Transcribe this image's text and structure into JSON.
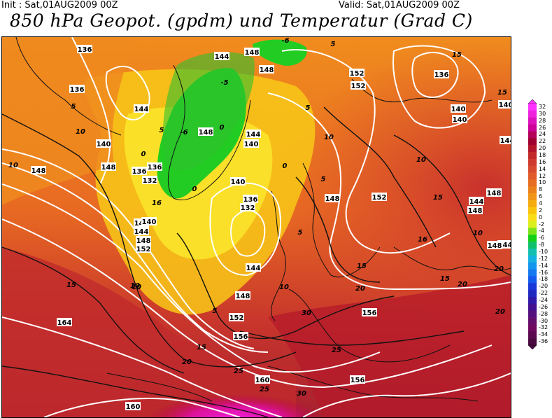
{
  "header": {
    "init": "Init : Sat,01AUG2009 00Z",
    "valid": "Valid: Sat,01AUG2009 00Z",
    "title": "850 hPa Geopot. (gpdm) und Temperatur (Grad C)"
  },
  "legend": {
    "labels": [
      "32",
      "30",
      "28",
      "26",
      "24",
      "22",
      "20",
      "18",
      "16",
      "14",
      "12",
      "10",
      "8",
      "6",
      "4",
      "2",
      "0",
      "-2",
      "-4",
      "-6",
      "-8",
      "-10",
      "-12",
      "-14",
      "-16",
      "-18",
      "-20",
      "-22",
      "-24",
      "-26",
      "-28",
      "-30",
      "-32",
      "-34",
      "-36"
    ],
    "colors": [
      "#ff33ff",
      "#ee22dd",
      "#dd11bb",
      "#cc0099",
      "#b30059",
      "#a00030",
      "#b4142a",
      "#c22828",
      "#cf3a2e",
      "#d84a2e",
      "#e05a2a",
      "#e66d22",
      "#eb801a",
      "#f09515",
      "#f4ac10",
      "#f8c40c",
      "#fbdd18",
      "#d9ef1e",
      "#7be51a",
      "#14d016",
      "#10c06a",
      "#13c0b0",
      "#15b2e0",
      "#1596ee",
      "#1478ee",
      "#155aee",
      "#1838d8",
      "#2028c0",
      "#3018a8",
      "#421090",
      "#54107c",
      "#640e6c",
      "#700a5e",
      "#5c0a50",
      "#4a0840"
    ]
  },
  "map": {
    "contour_labels": [
      {
        "t": "136"
      },
      {
        "t": "136"
      },
      {
        "t": "144"
      },
      {
        "t": "148"
      },
      {
        "t": "148"
      },
      {
        "t": "152"
      },
      {
        "t": "152"
      },
      {
        "t": "136"
      },
      {
        "t": "140"
      },
      {
        "t": "144"
      },
      {
        "t": "148"
      },
      {
        "t": "140"
      },
      {
        "t": "148"
      },
      {
        "t": "136"
      },
      {
        "t": "132"
      },
      {
        "t": "140"
      },
      {
        "t": "144"
      },
      {
        "t": "148"
      },
      {
        "t": "152"
      },
      {
        "t": "136"
      },
      {
        "t": "132"
      },
      {
        "t": "140"
      },
      {
        "t": "144"
      },
      {
        "t": "148"
      },
      {
        "t": "152"
      },
      {
        "t": "156"
      },
      {
        "t": "164"
      },
      {
        "t": "160"
      },
      {
        "t": "160"
      },
      {
        "t": "156"
      },
      {
        "t": "156"
      },
      {
        "t": "152"
      },
      {
        "t": "148"
      },
      {
        "t": "148"
      },
      {
        "t": "144"
      },
      {
        "t": "140"
      },
      {
        "t": "140"
      },
      {
        "t": "148"
      },
      {
        "t": "144"
      },
      {
        "t": "148"
      },
      {
        "t": "144"
      },
      {
        "t": "140"
      },
      {
        "t": "140"
      },
      {
        "t": "136"
      },
      {
        "t": "144"
      },
      {
        "t": "148"
      }
    ],
    "temp_labels": [
      {
        "t": "5"
      },
      {
        "t": "10"
      },
      {
        "t": "10"
      },
      {
        "t": "5"
      },
      {
        "t": "-5"
      },
      {
        "t": "-6"
      },
      {
        "t": "0"
      },
      {
        "t": "0"
      },
      {
        "t": "-6"
      },
      {
        "t": "0"
      },
      {
        "t": "5"
      },
      {
        "t": "0"
      },
      {
        "t": "5"
      },
      {
        "t": "5"
      },
      {
        "t": "10"
      },
      {
        "t": "10"
      },
      {
        "t": "15"
      },
      {
        "t": "16"
      },
      {
        "t": "15"
      },
      {
        "t": "10"
      },
      {
        "t": "15"
      },
      {
        "t": "20"
      },
      {
        "t": "20"
      },
      {
        "t": "25"
      },
      {
        "t": "25"
      },
      {
        "t": "30"
      },
      {
        "t": "30"
      },
      {
        "t": "20"
      },
      {
        "t": "25"
      },
      {
        "t": "16"
      },
      {
        "t": "10"
      },
      {
        "t": "15"
      },
      {
        "t": "15"
      },
      {
        "t": "20"
      },
      {
        "t": "20"
      },
      {
        "t": "10"
      },
      {
        "t": "15"
      },
      {
        "t": "15"
      },
      {
        "t": "5"
      },
      {
        "t": "10"
      },
      {
        "t": "10"
      },
      {
        "t": "5"
      }
    ]
  }
}
